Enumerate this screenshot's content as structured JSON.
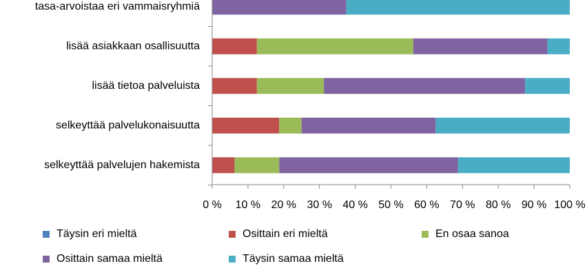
{
  "chart_data": {
    "type": "stacked-bar-horizontal",
    "categories": [
      "tasa-arvoistaa eri vammaisryhmiä",
      "lisää asiakkaan osallisuutta",
      "lisää tietoa palveluista",
      "selkeyttää palvelukonaisuutta",
      "selkeyttää palvelujen hakemista"
    ],
    "series": [
      {
        "name": "Täysin eri mieltä",
        "color": "#4f81bd",
        "values": [
          0,
          0,
          0,
          0,
          0
        ]
      },
      {
        "name": "Osittain eri mieltä",
        "color": "#c0504d",
        "values": [
          0,
          12.5,
          12.5,
          18.75,
          6.25
        ]
      },
      {
        "name": "En osaa sanoa",
        "color": "#9bbb59",
        "values": [
          0,
          43.75,
          18.75,
          6.25,
          12.5
        ]
      },
      {
        "name": "Osittain samaa mieltä",
        "color": "#8064a2",
        "values": [
          37.5,
          37.5,
          56.25,
          37.5,
          50
        ]
      },
      {
        "name": "Täysin samaa mieltä",
        "color": "#4bacc6",
        "values": [
          62.5,
          6.25,
          12.5,
          37.5,
          31.25
        ]
      }
    ],
    "xlim": [
      0,
      100
    ],
    "xticks": [
      {
        "value": 0,
        "label": "0 %"
      },
      {
        "value": 10,
        "label": "10 %"
      },
      {
        "value": 20,
        "label": "20 %"
      },
      {
        "value": 30,
        "label": "30 %"
      },
      {
        "value": 40,
        "label": "40 %"
      },
      {
        "value": 50,
        "label": "50 %"
      },
      {
        "value": 60,
        "label": "60 %"
      },
      {
        "value": 70,
        "label": "70 %"
      },
      {
        "value": 80,
        "label": "80 %"
      },
      {
        "value": 90,
        "label": "90 %"
      },
      {
        "value": 100,
        "label": "100 %"
      }
    ]
  }
}
